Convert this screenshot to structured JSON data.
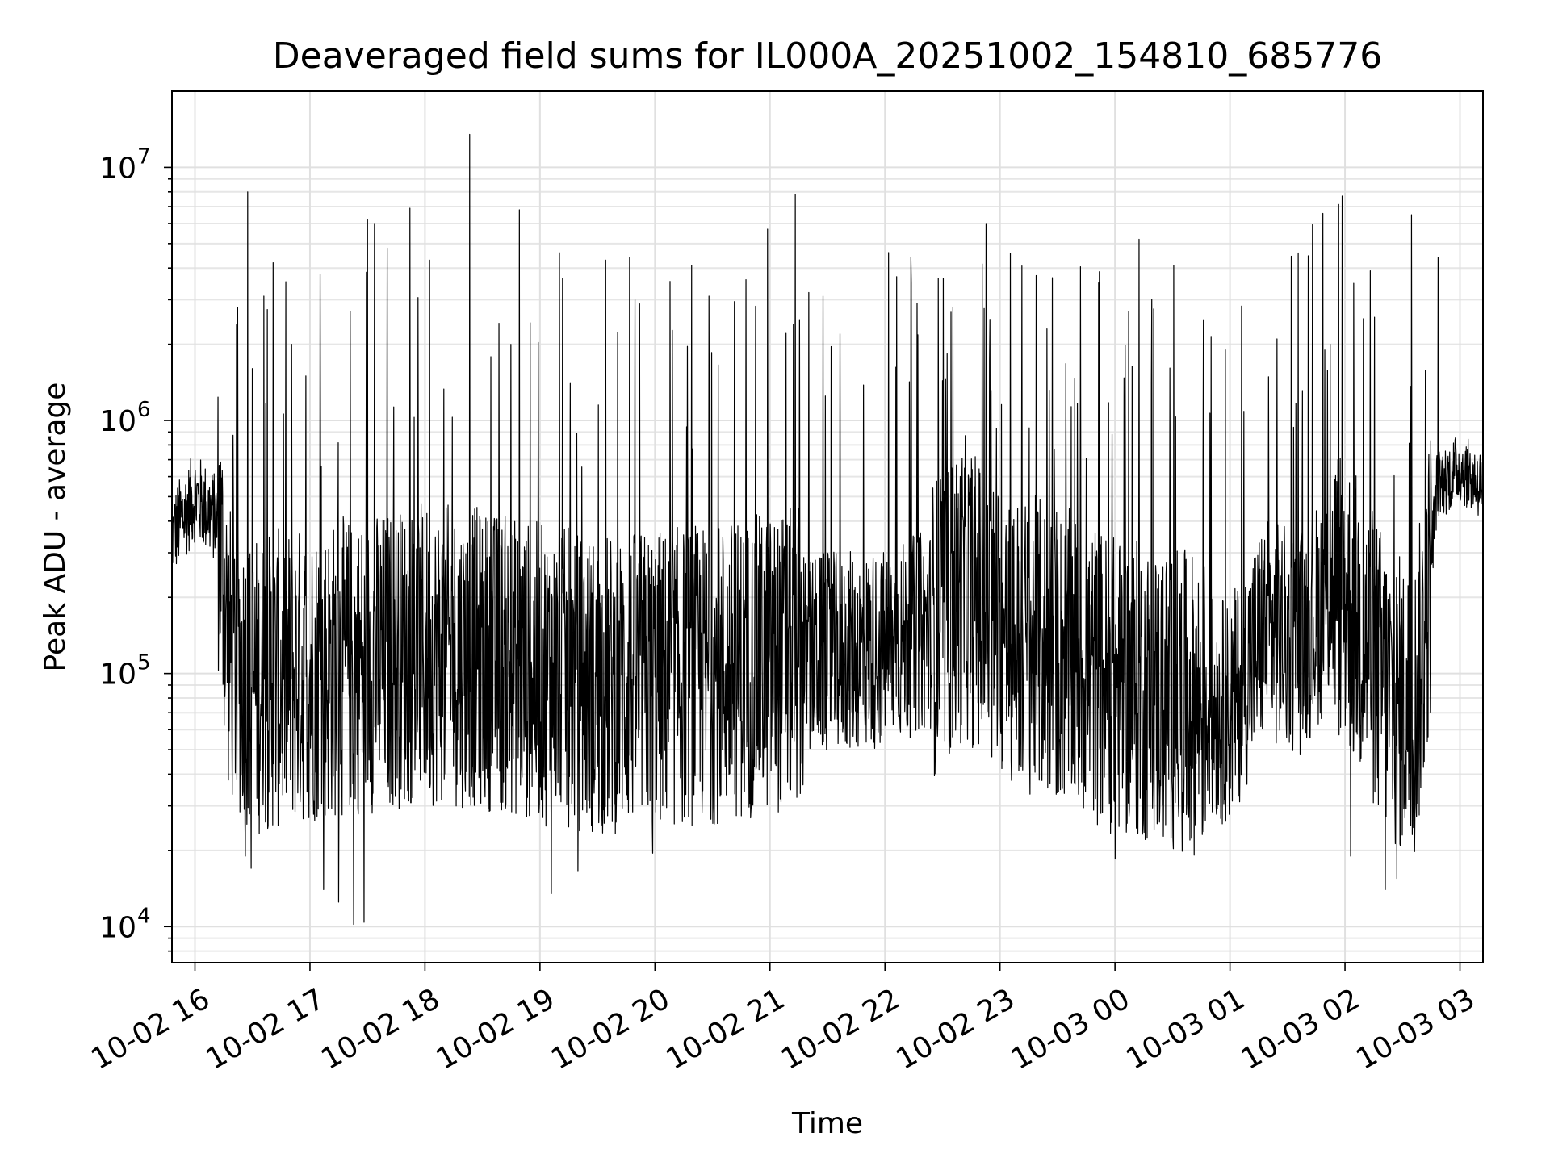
{
  "chart_data": {
    "type": "line",
    "title": "Deaveraged field sums for IL000A_20251002_154810_685776",
    "xlabel": "Time",
    "ylabel": "Peak ADU - average",
    "yscale": "log",
    "ylim": [
      7200,
      20000000
    ],
    "xlim_hours": [
      15.8,
      27.2
    ],
    "grid": true,
    "x_ticks": [
      {
        "hour": 16,
        "label": "10-02 16"
      },
      {
        "hour": 17,
        "label": "10-02 17"
      },
      {
        "hour": 18,
        "label": "10-02 18"
      },
      {
        "hour": 19,
        "label": "10-02 19"
      },
      {
        "hour": 20,
        "label": "10-02 20"
      },
      {
        "hour": 21,
        "label": "10-02 21"
      },
      {
        "hour": 22,
        "label": "10-02 22"
      },
      {
        "hour": 23,
        "label": "10-02 23"
      },
      {
        "hour": 24,
        "label": "10-03 00"
      },
      {
        "hour": 25,
        "label": "10-03 01"
      },
      {
        "hour": 26,
        "label": "10-03 02"
      },
      {
        "hour": 27,
        "label": "10-03 03"
      }
    ],
    "y_ticks": [
      {
        "value": 10000,
        "base": "10",
        "exp": "4"
      },
      {
        "value": 100000,
        "base": "10",
        "exp": "5"
      },
      {
        "value": 1000000,
        "base": "10",
        "exp": "6"
      },
      {
        "value": 10000000,
        "base": "10",
        "exp": "7"
      }
    ],
    "series": [
      {
        "name": "deaveraged field sums",
        "color": "#000000",
        "baseline_profile": {
          "hours": [
            15.8,
            16.0,
            16.2,
            16.3,
            16.5,
            17.0,
            17.5,
            18.0,
            18.5,
            19.0,
            19.5,
            20.0,
            20.5,
            21.0,
            21.5,
            22.0,
            22.5,
            22.7,
            23.0,
            23.5,
            24.0,
            24.5,
            25.0,
            25.3,
            25.6,
            25.9,
            26.0,
            26.4,
            26.6,
            26.7,
            26.8,
            27.0,
            27.2
          ],
          "median": [
            350000,
            500000,
            400000,
            120000,
            90000,
            100000,
            110000,
            120000,
            115000,
            100000,
            90000,
            95000,
            100000,
            110000,
            120000,
            125000,
            160000,
            220000,
            140000,
            120000,
            90000,
            80000,
            70000,
            150000,
            130000,
            220000,
            200000,
            80000,
            70000,
            150000,
            550000,
            650000,
            550000
          ]
        },
        "spikes": [
          {
            "hour": 16.46,
            "value": 8000000
          },
          {
            "hour": 16.37,
            "value": 2800000
          },
          {
            "hour": 16.6,
            "value": 3100000
          },
          {
            "hour": 16.68,
            "value": 4200000
          },
          {
            "hour": 16.84,
            "value": 2000000
          },
          {
            "hour": 17.09,
            "value": 3800000
          },
          {
            "hour": 17.35,
            "value": 2700000
          },
          {
            "hour": 17.5,
            "value": 6200000
          },
          {
            "hour": 17.56,
            "value": 6000000
          },
          {
            "hour": 17.67,
            "value": 4800000
          },
          {
            "hour": 17.87,
            "value": 6900000
          },
          {
            "hour": 18.04,
            "value": 4300000
          },
          {
            "hour": 18.39,
            "value": 13500000
          },
          {
            "hour": 18.82,
            "value": 6800000
          },
          {
            "hour": 19.17,
            "value": 4600000
          },
          {
            "hour": 19.57,
            "value": 4300000
          },
          {
            "hour": 19.78,
            "value": 4400000
          },
          {
            "hour": 20.32,
            "value": 4100000
          },
          {
            "hour": 20.47,
            "value": 3100000
          },
          {
            "hour": 20.98,
            "value": 5700000
          },
          {
            "hour": 21.22,
            "value": 7800000
          },
          {
            "hour": 21.46,
            "value": 3100000
          },
          {
            "hour": 21.61,
            "value": 2200000
          },
          {
            "hour": 22.1,
            "value": 3700000
          },
          {
            "hour": 22.23,
            "value": 3500000
          },
          {
            "hour": 22.59,
            "value": 2800000
          },
          {
            "hour": 22.88,
            "value": 6000000
          },
          {
            "hour": 23.41,
            "value": 2300000
          },
          {
            "hour": 24.21,
            "value": 5200000
          },
          {
            "hour": 24.51,
            "value": 4100000
          },
          {
            "hour": 24.77,
            "value": 2500000
          },
          {
            "hour": 24.96,
            "value": 1900000
          },
          {
            "hour": 25.41,
            "value": 2100000
          },
          {
            "hour": 25.87,
            "value": 2000000
          },
          {
            "hour": 26.22,
            "value": 3900000
          },
          {
            "hour": 26.58,
            "value": 6500000
          },
          {
            "hour": 26.81,
            "value": 4400000
          }
        ],
        "dips": [
          {
            "hour": 16.44,
            "value": 19000
          },
          {
            "hour": 16.49,
            "value": 17000
          },
          {
            "hour": 17.12,
            "value": 14000
          },
          {
            "hour": 17.25,
            "value": 12500
          },
          {
            "hour": 17.38,
            "value": 10200
          },
          {
            "hour": 17.47,
            "value": 10400
          },
          {
            "hour": 19.1,
            "value": 13500
          },
          {
            "hour": 19.33,
            "value": 16500
          },
          {
            "hour": 19.98,
            "value": 19500
          },
          {
            "hour": 24.0,
            "value": 18500
          },
          {
            "hour": 26.05,
            "value": 19000
          },
          {
            "hour": 26.35,
            "value": 14000
          },
          {
            "hour": 26.45,
            "value": 15500
          }
        ]
      }
    ]
  }
}
